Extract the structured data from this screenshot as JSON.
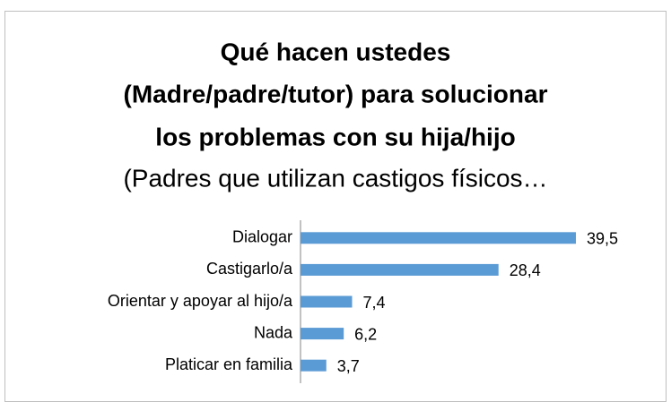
{
  "chart_data": {
    "type": "bar",
    "orientation": "horizontal",
    "title": [
      "Qué hacen ustedes",
      "(Madre/padre/tutor) para solucionar",
      "los problemas con su hija/hijo"
    ],
    "subtitle": "(Padres que utilizan castigos físicos…",
    "categories": [
      "Dialogar",
      "Castigarlo/a",
      "Orientar y apoyar al hijo/a",
      "Nada",
      "Platicar en familia"
    ],
    "values": [
      39.5,
      28.4,
      7.4,
      6.2,
      3.7
    ],
    "value_labels": [
      "39,5",
      "28,4",
      "7,4",
      "6,2",
      "3,7"
    ],
    "color": "#5b9bd5"
  }
}
